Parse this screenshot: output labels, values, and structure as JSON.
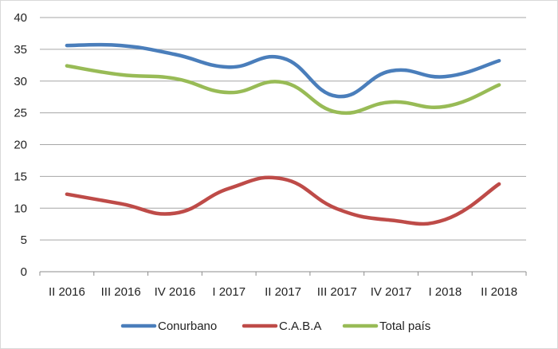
{
  "chart_data": {
    "type": "line",
    "categories": [
      "II 2016",
      "III 2016",
      "IV 2016",
      "I 2017",
      "II 2017",
      "III 2017",
      "IV 2017",
      "I 2018",
      "II 2018"
    ],
    "series": [
      {
        "name": "Conurbano",
        "color": "#4a7ebb",
        "values": [
          35.6,
          35.6,
          34.2,
          32.2,
          33.6,
          27.6,
          31.6,
          30.7,
          33.2
        ]
      },
      {
        "name": "C.A.B.A",
        "color": "#be4b48",
        "values": [
          12.2,
          10.7,
          9.2,
          13.1,
          14.6,
          9.9,
          8.1,
          8.2,
          13.8
        ]
      },
      {
        "name": "Total país",
        "color": "#98bb56",
        "values": [
          32.4,
          31.0,
          30.4,
          28.2,
          29.8,
          25.1,
          26.7,
          26.0,
          29.4
        ]
      }
    ],
    "ylim": [
      0,
      40
    ],
    "yticks": [
      "0",
      "5",
      "10",
      "15",
      "20",
      "25",
      "30",
      "35",
      "40"
    ],
    "grid": "horizontal",
    "legend": "bottom"
  }
}
